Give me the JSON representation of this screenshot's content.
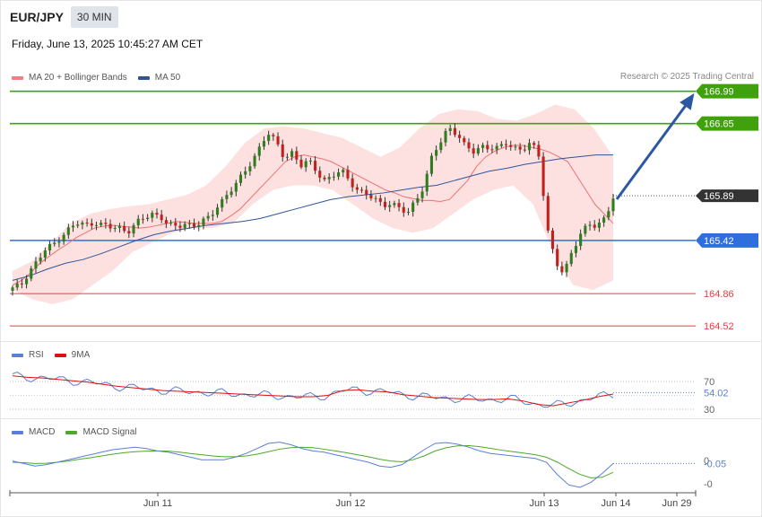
{
  "header": {
    "symbol": "EUR/JPY",
    "timeframe": "30 MIN",
    "datetime": "Friday, June 13, 2025 10:45:27 AM CET"
  },
  "credit": "Research © 2025 Trading Central",
  "legends": {
    "price": [
      {
        "label": "MA 20 + Bollinger Bands",
        "color": "#f08080"
      },
      {
        "label": "MA 50",
        "color": "#2f5597"
      }
    ],
    "rsi": [
      {
        "label": "RSI",
        "color": "#5b7fd6"
      },
      {
        "label": "9MA",
        "color": "#e01010"
      }
    ],
    "macd": [
      {
        "label": "MACD",
        "color": "#5b7fd6"
      },
      {
        "label": "MACD Signal",
        "color": "#4ea82a"
      }
    ]
  },
  "chart_data": {
    "type": "candlestick",
    "price_range": [
      164.38,
      167.1
    ],
    "price_levels": [
      {
        "value": "166.99",
        "color": "#3fa10b",
        "style": "resistance"
      },
      {
        "value": "166.65",
        "color": "#3fa10b",
        "style": "resistance"
      },
      {
        "value": "165.89",
        "color": "#333333",
        "style": "current"
      },
      {
        "value": "165.42",
        "color": "#2f6fdd",
        "style": "support"
      },
      {
        "value": "164.86",
        "color": "#e04040",
        "style": "line"
      },
      {
        "value": "164.52",
        "color": "#e04040",
        "style": "line"
      }
    ],
    "x_ticks": [
      "Jun 11",
      "Jun 12",
      "Jun 13",
      "Jun 14",
      "Jun 29"
    ],
    "close_path": [
      164.91,
      164.95,
      165.1,
      165.2,
      165.32,
      165.38,
      165.48,
      165.55,
      165.6,
      165.58,
      165.62,
      165.58,
      165.55,
      165.55,
      165.52,
      165.6,
      165.65,
      165.7,
      165.68,
      165.58,
      165.55,
      165.6,
      165.58,
      165.62,
      165.65,
      165.8,
      165.9,
      166.0,
      166.1,
      166.25,
      166.4,
      166.55,
      166.45,
      166.3,
      166.35,
      166.2,
      166.25,
      166.15,
      166.05,
      166.1,
      166.15,
      166.05,
      165.95,
      165.9,
      165.85,
      165.8,
      165.82,
      165.75,
      165.7,
      165.85,
      166.0,
      166.3,
      166.45,
      166.62,
      166.55,
      166.4,
      166.35,
      166.42,
      166.4,
      166.38,
      166.44,
      166.4,
      166.38,
      166.44,
      166.3,
      165.55,
      165.2,
      165.05,
      165.3,
      165.5,
      165.6,
      165.55,
      165.65,
      165.89
    ],
    "ma20_path": [
      164.95,
      165.0,
      165.08,
      165.18,
      165.25,
      165.32,
      165.38,
      165.45,
      165.5,
      165.55,
      165.57,
      165.58,
      165.57,
      165.56,
      165.55,
      165.56,
      165.58,
      165.6,
      165.62,
      165.61,
      165.6,
      165.6,
      165.6,
      165.62,
      165.68,
      165.75,
      165.85,
      165.95,
      166.05,
      166.15,
      166.25,
      166.3,
      166.32,
      166.3,
      166.28,
      166.25,
      166.2,
      166.15,
      166.1,
      166.05,
      166.0,
      165.95,
      165.92,
      165.88,
      165.86,
      165.84,
      165.84,
      165.83,
      165.85,
      165.95,
      166.05,
      166.2,
      166.3,
      166.36,
      166.4,
      166.42,
      166.42,
      166.4,
      166.38,
      166.35,
      166.3,
      166.25,
      166.1,
      165.95,
      165.8,
      165.7,
      165.6
    ],
    "ma50_path": [
      165.0,
      165.05,
      165.12,
      165.18,
      165.22,
      165.28,
      165.35,
      165.42,
      165.48,
      165.52,
      165.55,
      165.58,
      165.6,
      165.62,
      165.65,
      165.7,
      165.75,
      165.8,
      165.85,
      165.88,
      165.9,
      165.92,
      165.95,
      165.98,
      166.0,
      166.05,
      166.1,
      166.15,
      166.18,
      166.22,
      166.25,
      166.28,
      166.3,
      166.32,
      166.32
    ],
    "upper_band_path": [
      165.1,
      165.2,
      165.4,
      165.6,
      165.7,
      165.75,
      165.78,
      165.8,
      165.85,
      165.9,
      166.0,
      166.2,
      166.45,
      166.6,
      166.62,
      166.6,
      166.55,
      166.5,
      166.4,
      166.3,
      166.4,
      166.6,
      166.75,
      166.8,
      166.78,
      166.7,
      166.68,
      166.75,
      166.85,
      166.8,
      166.6,
      166.3
    ],
    "lower_band_path": [
      164.9,
      164.8,
      164.75,
      164.8,
      164.95,
      165.1,
      165.3,
      165.4,
      165.5,
      165.55,
      165.55,
      165.6,
      165.8,
      165.95,
      166.0,
      166.0,
      165.95,
      165.8,
      165.65,
      165.55,
      165.5,
      165.55,
      165.7,
      165.85,
      165.95,
      166.0,
      165.8,
      165.3,
      164.95,
      164.9,
      165.0
    ],
    "rsi": {
      "levels": [
        "70",
        "30"
      ],
      "last_value": "54.02"
    },
    "macd": {
      "levels": [
        "0",
        "-0"
      ],
      "last_value": "-0.05"
    }
  }
}
